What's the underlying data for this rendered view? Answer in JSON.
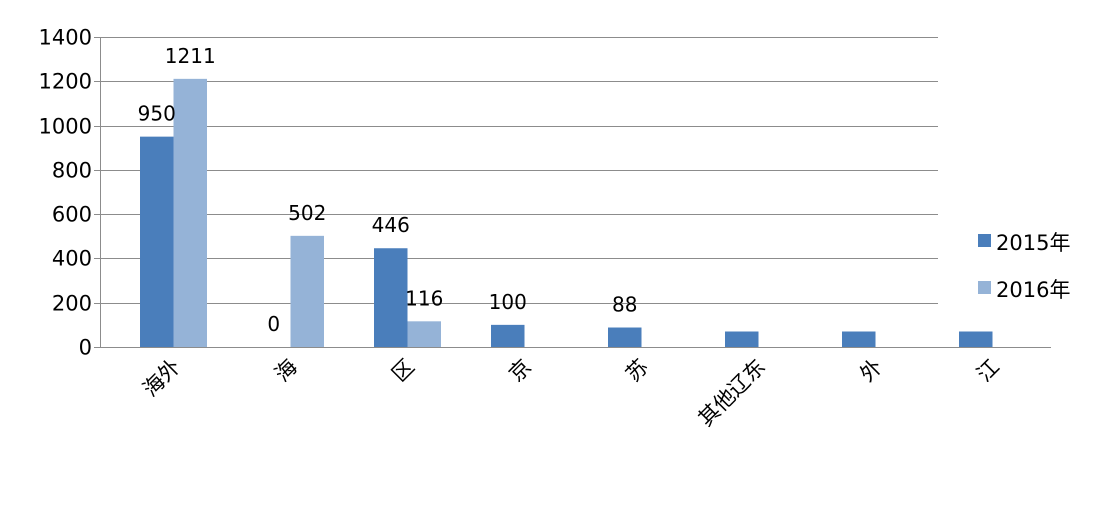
{
  "chart_data": {
    "type": "bar",
    "categories": [
      "海外",
      "海",
      "区",
      "京",
      "苏",
      "其他辽东",
      "外",
      "江"
    ],
    "series": [
      {
        "name": "2015年",
        "color": "#4A7EBB",
        "values": [
          950,
          0,
          446,
          100,
          88,
          70,
          70,
          70
        ],
        "data_labels": [
          "950",
          "0",
          "446",
          "100",
          "88",
          null,
          null,
          null
        ]
      },
      {
        "name": "2016年",
        "color": "#95B3D7",
        "values": [
          1211,
          502,
          116,
          null,
          null,
          null,
          null,
          null
        ],
        "data_labels": [
          "1211",
          "502",
          "116",
          null,
          null,
          null,
          null,
          null
        ]
      }
    ],
    "ylim": [
      0,
      1400
    ],
    "yticks": [
      0,
      200,
      400,
      600,
      800,
      1000,
      1200,
      1400
    ],
    "grid": true,
    "legend": "right"
  }
}
